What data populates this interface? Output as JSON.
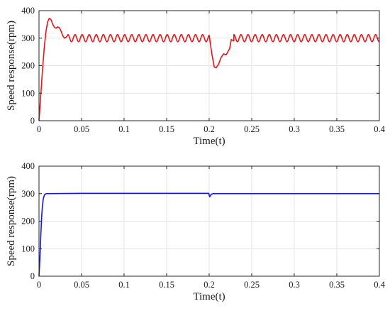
{
  "chart_data": [
    {
      "type": "line",
      "xlabel": "Time(t)",
      "ylabel": "Speed response(rpm)",
      "xlim": [
        0,
        0.4
      ],
      "ylim": [
        0,
        400
      ],
      "x_ticks": [
        "0",
        "0.05",
        "0.1",
        "0.15",
        "0.2",
        "0.25",
        "0.3",
        "0.35",
        "0.4"
      ],
      "y_ticks": [
        "0",
        "100",
        "200",
        "300",
        "400"
      ],
      "grid": true,
      "series": [
        {
          "color": "#e8151b",
          "description": "PI response: rise to ~372 rpm overshoot at ~0.012 s, settles with ~±13 rpm ripple around 300 rpm (period ~0.0083 s); load disturbance at 0.2 s dips to ~192 rpm, recovers by ~0.23 s",
          "points": [
            [
              0,
              0
            ],
            [
              0.002,
              90
            ],
            [
              0.004,
              180
            ],
            [
              0.006,
              260
            ],
            [
              0.008,
              320
            ],
            [
              0.01,
              358
            ],
            [
              0.012,
              372
            ],
            [
              0.014,
              368
            ],
            [
              0.016,
              352
            ],
            [
              0.018,
              340
            ],
            [
              0.02,
              336
            ],
            [
              0.022,
              341
            ],
            [
              0.024,
              338
            ],
            [
              0.026,
              325
            ],
            [
              0.028,
              308
            ],
            [
              0.03,
              300
            ],
            [
              0.032,
              304
            ],
            [
              0.034,
              311
            ],
            [
              0.2,
              311
            ],
            [
              0.203,
              245
            ],
            [
              0.206,
              195
            ],
            [
              0.208,
              192
            ],
            [
              0.211,
              205
            ],
            [
              0.214,
              230
            ],
            [
              0.217,
              243
            ],
            [
              0.22,
              240
            ],
            [
              0.224,
              262
            ],
            [
              0.226,
              295
            ],
            [
              0.229,
              290
            ]
          ],
          "ripple": {
            "start": 0.034,
            "end": 0.2,
            "restart": 0.229,
            "mean": 300,
            "amplitude": 13,
            "period": 0.00833
          }
        }
      ]
    },
    {
      "type": "line",
      "xlabel": "Time(t)",
      "ylabel": "Speed response(rpm)",
      "xlim": [
        0,
        0.4
      ],
      "ylim": [
        0,
        400
      ],
      "x_ticks": [
        "0",
        "0.05",
        "0.1",
        "0.15",
        "0.2",
        "0.25",
        "0.3",
        "0.35",
        "0.4"
      ],
      "y_ticks": [
        "0",
        "100",
        "200",
        "300",
        "400"
      ],
      "grid": true,
      "series": [
        {
          "color": "#1414e6",
          "description": "Improved controller: fast rise to 300 rpm in ~0.008 s without overshoot, small dip to ~290 rpm at 0.2 s",
          "points": [
            [
              0,
              0
            ],
            [
              0.001,
              60
            ],
            [
              0.002,
              140
            ],
            [
              0.003,
              210
            ],
            [
              0.004,
              255
            ],
            [
              0.005,
              280
            ],
            [
              0.006,
              292
            ],
            [
              0.007,
              298
            ],
            [
              0.009,
              300
            ],
            [
              0.05,
              301
            ],
            [
              0.1,
              301
            ],
            [
              0.15,
              301
            ],
            [
              0.1995,
              301
            ],
            [
              0.2005,
              289
            ],
            [
              0.2015,
              293
            ],
            [
              0.2025,
              298
            ],
            [
              0.205,
              300
            ],
            [
              0.25,
              300
            ],
            [
              0.3,
              300
            ],
            [
              0.35,
              300
            ],
            [
              0.4,
              300
            ]
          ]
        }
      ]
    }
  ]
}
